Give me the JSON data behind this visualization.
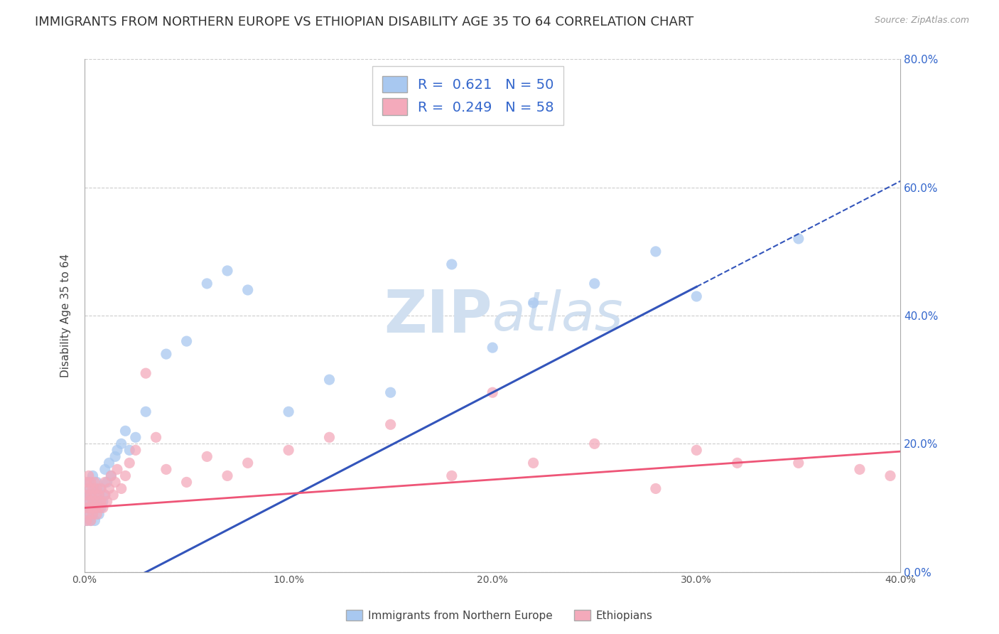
{
  "title": "IMMIGRANTS FROM NORTHERN EUROPE VS ETHIOPIAN DISABILITY AGE 35 TO 64 CORRELATION CHART",
  "source": "Source: ZipAtlas.com",
  "ylabel": "Disability Age 35 to 64",
  "series1_label": "Immigrants from Northern Europe",
  "series2_label": "Ethiopians",
  "series1_R": 0.621,
  "series1_N": 50,
  "series2_R": 0.249,
  "series2_N": 58,
  "series1_color": "#A8C8F0",
  "series2_color": "#F4AABB",
  "series1_line_color": "#3355BB",
  "series2_line_color": "#EE5577",
  "xlim": [
    0.0,
    0.4
  ],
  "ylim": [
    0.0,
    0.8
  ],
  "xticks": [
    0.0,
    0.1,
    0.2,
    0.3,
    0.4
  ],
  "yticks": [
    0.0,
    0.2,
    0.4,
    0.6,
    0.8
  ],
  "series1_x": [
    0.001,
    0.001,
    0.001,
    0.002,
    0.002,
    0.002,
    0.003,
    0.003,
    0.003,
    0.003,
    0.004,
    0.004,
    0.004,
    0.005,
    0.005,
    0.005,
    0.006,
    0.006,
    0.007,
    0.007,
    0.008,
    0.008,
    0.009,
    0.01,
    0.01,
    0.011,
    0.012,
    0.013,
    0.015,
    0.016,
    0.018,
    0.02,
    0.022,
    0.025,
    0.03,
    0.04,
    0.05,
    0.06,
    0.07,
    0.08,
    0.1,
    0.12,
    0.15,
    0.18,
    0.2,
    0.22,
    0.25,
    0.28,
    0.3,
    0.35
  ],
  "series1_y": [
    0.08,
    0.1,
    0.12,
    0.09,
    0.11,
    0.14,
    0.1,
    0.12,
    0.08,
    0.13,
    0.11,
    0.09,
    0.15,
    0.1,
    0.13,
    0.08,
    0.14,
    0.11,
    0.12,
    0.09,
    0.1,
    0.13,
    0.11,
    0.12,
    0.16,
    0.14,
    0.17,
    0.15,
    0.18,
    0.19,
    0.2,
    0.22,
    0.19,
    0.21,
    0.25,
    0.34,
    0.36,
    0.45,
    0.47,
    0.44,
    0.25,
    0.3,
    0.28,
    0.48,
    0.35,
    0.42,
    0.45,
    0.5,
    0.43,
    0.52
  ],
  "series2_x": [
    0.001,
    0.001,
    0.001,
    0.001,
    0.002,
    0.002,
    0.002,
    0.002,
    0.003,
    0.003,
    0.003,
    0.003,
    0.004,
    0.004,
    0.004,
    0.005,
    0.005,
    0.005,
    0.006,
    0.006,
    0.006,
    0.007,
    0.007,
    0.008,
    0.008,
    0.009,
    0.01,
    0.01,
    0.011,
    0.012,
    0.013,
    0.014,
    0.015,
    0.016,
    0.018,
    0.02,
    0.022,
    0.025,
    0.03,
    0.035,
    0.04,
    0.05,
    0.06,
    0.07,
    0.08,
    0.1,
    0.12,
    0.15,
    0.18,
    0.2,
    0.22,
    0.25,
    0.28,
    0.3,
    0.32,
    0.35,
    0.38,
    0.395
  ],
  "series2_y": [
    0.08,
    0.1,
    0.12,
    0.14,
    0.09,
    0.11,
    0.13,
    0.15,
    0.08,
    0.1,
    0.12,
    0.14,
    0.09,
    0.11,
    0.13,
    0.1,
    0.12,
    0.14,
    0.09,
    0.11,
    0.13,
    0.1,
    0.12,
    0.11,
    0.13,
    0.1,
    0.12,
    0.14,
    0.11,
    0.13,
    0.15,
    0.12,
    0.14,
    0.16,
    0.13,
    0.15,
    0.17,
    0.19,
    0.31,
    0.21,
    0.16,
    0.14,
    0.18,
    0.15,
    0.17,
    0.19,
    0.21,
    0.23,
    0.15,
    0.28,
    0.17,
    0.2,
    0.13,
    0.19,
    0.17,
    0.17,
    0.16,
    0.15
  ],
  "background_color": "#FFFFFF",
  "grid_color": "#CCCCCC",
  "title_fontsize": 13,
  "axis_label_fontsize": 11,
  "tick_fontsize": 10,
  "legend_fontsize": 14,
  "watermark_color": "#D0DFF0",
  "line1_x_solid_end": 0.3,
  "line1_x_dash_start": 0.3,
  "line1_x_dash_end": 0.4,
  "line1_intercept": -0.05,
  "line1_slope": 1.65,
  "line2_intercept": 0.1,
  "line2_slope": 0.22
}
